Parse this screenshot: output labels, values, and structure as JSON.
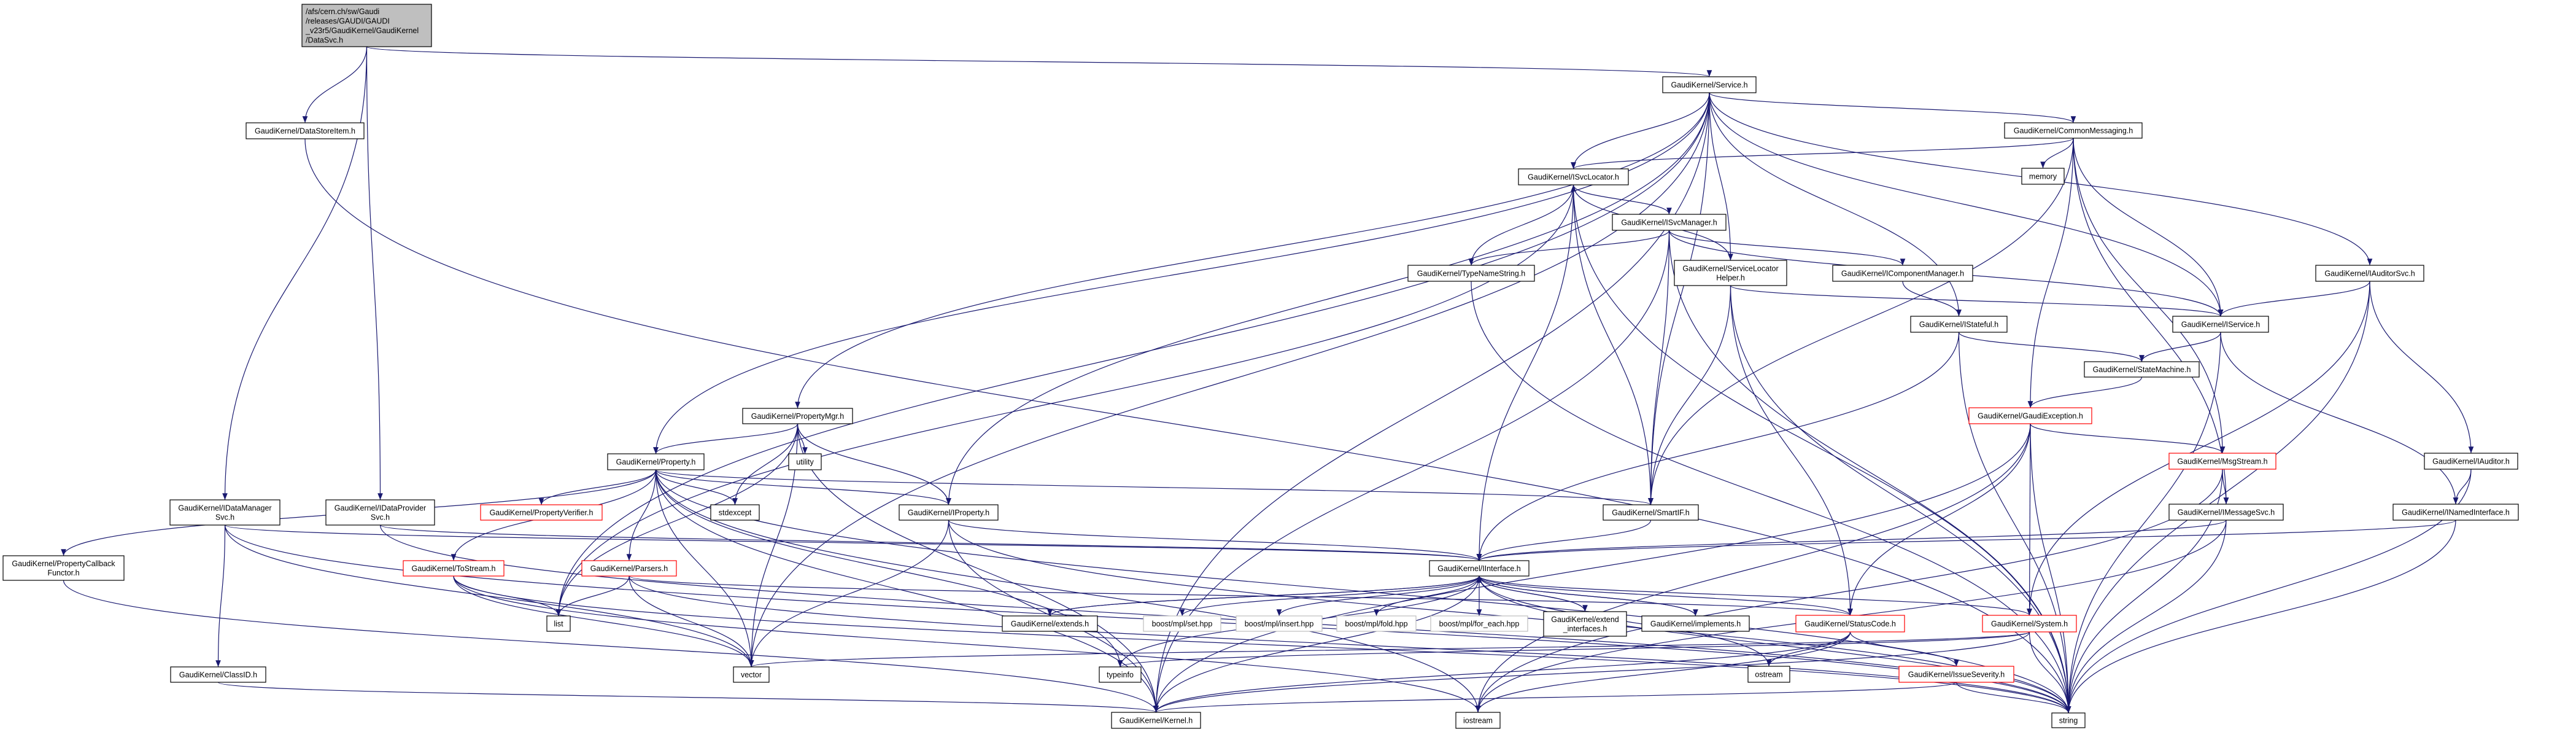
{
  "graph": {
    "colors": {
      "edge": "#191970",
      "root_fill": "#bfbfbf",
      "red_border": "#ff0000",
      "external_border": "#bfbfbf",
      "normal_border": "#000000"
    },
    "nodes": [
      {
        "id": "root",
        "lines": [
          "/afs/cern.ch/sw/Gaudi",
          "/releases/GAUDI/GAUDI",
          "_v23r5/GaudiKernel/GaudiKernel",
          "/DataSvc.h"
        ],
        "style": "root"
      },
      {
        "id": "dsi",
        "lines": [
          "GaudiKernel/DataStoreItem.h"
        ],
        "style": "normal"
      },
      {
        "id": "idms",
        "lines": [
          "GaudiKernel/IDataManager",
          "Svc.h"
        ],
        "style": "normal"
      },
      {
        "id": "idps",
        "lines": [
          "GaudiKernel/IDataProvider",
          "Svc.h"
        ],
        "style": "normal"
      },
      {
        "id": "pcf",
        "lines": [
          "GaudiKernel/PropertyCallback",
          "Functor.h"
        ],
        "style": "normal"
      },
      {
        "id": "cid",
        "lines": [
          "GaudiKernel/ClassID.h"
        ],
        "style": "normal"
      },
      {
        "id": "prop",
        "lines": [
          "GaudiKernel/Property.h"
        ],
        "style": "normal"
      },
      {
        "id": "pmgr",
        "lines": [
          "GaudiKernel/PropertyMgr.h"
        ],
        "style": "normal"
      },
      {
        "id": "util",
        "lines": [
          "utility"
        ],
        "style": "normal"
      },
      {
        "id": "pver",
        "lines": [
          "GaudiKernel/PropertyVerifier.h"
        ],
        "style": "red"
      },
      {
        "id": "stdx",
        "lines": [
          "stdexcept"
        ],
        "style": "normal"
      },
      {
        "id": "tos",
        "lines": [
          "GaudiKernel/ToStream.h"
        ],
        "style": "red"
      },
      {
        "id": "pars",
        "lines": [
          "GaudiKernel/Parsers.h"
        ],
        "style": "red"
      },
      {
        "id": "list",
        "lines": [
          "list"
        ],
        "style": "normal"
      },
      {
        "id": "vec",
        "lines": [
          "vector"
        ],
        "style": "normal"
      },
      {
        "id": "iprop",
        "lines": [
          "GaudiKernel/IProperty.h"
        ],
        "style": "normal"
      },
      {
        "id": "smart",
        "lines": [
          "GaudiKernel/SmartIF.h"
        ],
        "style": "normal"
      },
      {
        "id": "iint",
        "lines": [
          "GaudiKernel/IInterface.h"
        ],
        "style": "normal"
      },
      {
        "id": "ext",
        "lines": [
          "GaudiKernel/extends.h"
        ],
        "style": "normal"
      },
      {
        "id": "bset",
        "lines": [
          "boost/mpl/set.hpp"
        ],
        "style": "external"
      },
      {
        "id": "bins",
        "lines": [
          "boost/mpl/insert.hpp"
        ],
        "style": "external"
      },
      {
        "id": "bfold",
        "lines": [
          "boost/mpl/fold.hpp"
        ],
        "style": "external"
      },
      {
        "id": "bfor",
        "lines": [
          "boost/mpl/for_each.hpp"
        ],
        "style": "external"
      },
      {
        "id": "extif",
        "lines": [
          "GaudiKernel/extend",
          "_interfaces.h"
        ],
        "style": "normal"
      },
      {
        "id": "impl",
        "lines": [
          "GaudiKernel/implements.h"
        ],
        "style": "normal"
      },
      {
        "id": "tinfo",
        "lines": [
          "typeinfo"
        ],
        "style": "normal"
      },
      {
        "id": "kern",
        "lines": [
          "GaudiKernel/Kernel.h"
        ],
        "style": "normal"
      },
      {
        "id": "iostr",
        "lines": [
          "iostream"
        ],
        "style": "normal"
      },
      {
        "id": "isl",
        "lines": [
          "GaudiKernel/ISvcLocator.h"
        ],
        "style": "normal"
      },
      {
        "id": "ism",
        "lines": [
          "GaudiKernel/ISvcManager.h"
        ],
        "style": "normal"
      },
      {
        "id": "tns",
        "lines": [
          "GaudiKernel/TypeNameString.h"
        ],
        "style": "normal"
      },
      {
        "id": "slh",
        "lines": [
          "GaudiKernel/ServiceLocator",
          "Helper.h"
        ],
        "style": "normal"
      },
      {
        "id": "cmsg",
        "lines": [
          "GaudiKernel/CommonMessaging.h"
        ],
        "style": "normal"
      },
      {
        "id": "mem",
        "lines": [
          "memory"
        ],
        "style": "normal"
      },
      {
        "id": "icm",
        "lines": [
          "GaudiKernel/IComponentManager.h"
        ],
        "style": "normal"
      },
      {
        "id": "istf",
        "lines": [
          "GaudiKernel/IStateful.h"
        ],
        "style": "normal"
      },
      {
        "id": "isvc",
        "lines": [
          "GaudiKernel/IService.h"
        ],
        "style": "normal"
      },
      {
        "id": "iasvc",
        "lines": [
          "GaudiKernel/IAuditorSvc.h"
        ],
        "style": "normal"
      },
      {
        "id": "sm",
        "lines": [
          "GaudiKernel/StateMachine.h"
        ],
        "style": "normal"
      },
      {
        "id": "gexc",
        "lines": [
          "GaudiKernel/GaudiException.h"
        ],
        "style": "red"
      },
      {
        "id": "msg",
        "lines": [
          "GaudiKernel/MsgStream.h"
        ],
        "style": "red"
      },
      {
        "id": "iaud",
        "lines": [
          "GaudiKernel/IAuditor.h"
        ],
        "style": "normal"
      },
      {
        "id": "imsg",
        "lines": [
          "GaudiKernel/IMessageSvc.h"
        ],
        "style": "normal"
      },
      {
        "id": "inam",
        "lines": [
          "GaudiKernel/INamedInterface.h"
        ],
        "style": "normal"
      },
      {
        "id": "sc",
        "lines": [
          "GaudiKernel/StatusCode.h"
        ],
        "style": "red"
      },
      {
        "id": "sys",
        "lines": [
          "GaudiKernel/System.h"
        ],
        "style": "red"
      },
      {
        "id": "ostr",
        "lines": [
          "ostream"
        ],
        "style": "normal"
      },
      {
        "id": "isev",
        "lines": [
          "GaudiKernel/IssueSeverity.h"
        ],
        "style": "red"
      },
      {
        "id": "str",
        "lines": [
          "string"
        ],
        "style": "normal"
      },
      {
        "id": "svc",
        "lines": [
          "GaudiKernel/Service.h"
        ],
        "style": "normal"
      }
    ],
    "edges": [
      [
        "root",
        "svc"
      ],
      [
        "root",
        "dsi"
      ],
      [
        "root",
        "idms"
      ],
      [
        "root",
        "idps"
      ],
      [
        "dsi",
        "str"
      ],
      [
        "idms",
        "cid"
      ],
      [
        "idms",
        "iint"
      ],
      [
        "idms",
        "str"
      ],
      [
        "idms",
        "vec"
      ],
      [
        "idps",
        "iint"
      ],
      [
        "idps",
        "str"
      ],
      [
        "cid",
        "kern"
      ],
      [
        "pcf",
        "kern"
      ],
      [
        "svc",
        "isl"
      ],
      [
        "svc",
        "prop"
      ],
      [
        "svc",
        "pmgr"
      ],
      [
        "svc",
        "iprop"
      ],
      [
        "svc",
        "isvc"
      ],
      [
        "svc",
        "cmsg"
      ],
      [
        "svc",
        "iasvc"
      ],
      [
        "svc",
        "slh"
      ],
      [
        "svc",
        "istf"
      ],
      [
        "svc",
        "smart"
      ],
      [
        "svc",
        "kern"
      ],
      [
        "svc",
        "vec"
      ],
      [
        "svc",
        "list"
      ],
      [
        "isl",
        "ism"
      ],
      [
        "isl",
        "tns"
      ],
      [
        "isl",
        "iint"
      ],
      [
        "isl",
        "smart"
      ],
      [
        "isl",
        "str"
      ],
      [
        "isl",
        "list"
      ],
      [
        "ism",
        "tns"
      ],
      [
        "ism",
        "icm"
      ],
      [
        "ism",
        "isvc"
      ],
      [
        "ism",
        "smart"
      ],
      [
        "ism",
        "str"
      ],
      [
        "ism",
        "kern"
      ],
      [
        "tns",
        "str"
      ],
      [
        "slh",
        "isl"
      ],
      [
        "slh",
        "isvc"
      ],
      [
        "slh",
        "smart"
      ],
      [
        "slh",
        "sc"
      ],
      [
        "slh",
        "str"
      ],
      [
        "cmsg",
        "mem"
      ],
      [
        "cmsg",
        "isl"
      ],
      [
        "cmsg",
        "isvc"
      ],
      [
        "cmsg",
        "gexc"
      ],
      [
        "cmsg",
        "msg"
      ],
      [
        "cmsg",
        "imsg"
      ],
      [
        "cmsg",
        "smart"
      ],
      [
        "icm",
        "istf"
      ],
      [
        "istf",
        "sm"
      ],
      [
        "istf",
        "iint"
      ],
      [
        "istf",
        "str"
      ],
      [
        "isvc",
        "sm"
      ],
      [
        "isvc",
        "inam"
      ],
      [
        "isvc",
        "str"
      ],
      [
        "sm",
        "gexc"
      ],
      [
        "iasvc",
        "isvc"
      ],
      [
        "iasvc",
        "iaud"
      ],
      [
        "iasvc",
        "sys"
      ],
      [
        "iasvc",
        "str"
      ],
      [
        "iaud",
        "inam"
      ],
      [
        "iaud",
        "str"
      ],
      [
        "inam",
        "iint"
      ],
      [
        "inam",
        "str"
      ],
      [
        "gexc",
        "msg"
      ],
      [
        "gexc",
        "sc"
      ],
      [
        "gexc",
        "sys"
      ],
      [
        "gexc",
        "str"
      ],
      [
        "gexc",
        "kern"
      ],
      [
        "gexc",
        "iostr"
      ],
      [
        "msg",
        "imsg"
      ],
      [
        "msg",
        "str"
      ],
      [
        "msg",
        "iostr"
      ],
      [
        "imsg",
        "iint"
      ],
      [
        "imsg",
        "str"
      ],
      [
        "imsg",
        "iostr"
      ],
      [
        "sys",
        "str"
      ],
      [
        "sys",
        "kern"
      ],
      [
        "sys",
        "tinfo"
      ],
      [
        "sys",
        "vec"
      ],
      [
        "sc",
        "ostr"
      ],
      [
        "sc",
        "isev"
      ],
      [
        "sc",
        "kern"
      ],
      [
        "sc",
        "iostr"
      ],
      [
        "isev",
        "str"
      ],
      [
        "isev",
        "kern"
      ],
      [
        "iint",
        "ext"
      ],
      [
        "iint",
        "bset"
      ],
      [
        "iint",
        "bins"
      ],
      [
        "iint",
        "bfold"
      ],
      [
        "iint",
        "bfor"
      ],
      [
        "iint",
        "extif"
      ],
      [
        "iint",
        "impl"
      ],
      [
        "iint",
        "tinfo"
      ],
      [
        "iint",
        "sc"
      ],
      [
        "iint",
        "sys"
      ],
      [
        "iint",
        "kern"
      ],
      [
        "iint",
        "ostr"
      ],
      [
        "iint",
        "str"
      ],
      [
        "ext",
        "iint"
      ],
      [
        "extif",
        "iint"
      ],
      [
        "impl",
        "iint"
      ],
      [
        "smart",
        "iint"
      ],
      [
        "iprop",
        "iint"
      ],
      [
        "iprop",
        "str"
      ],
      [
        "iprop",
        "vec"
      ],
      [
        "iprop",
        "kern"
      ],
      [
        "prop",
        "pver"
      ],
      [
        "prop",
        "stdx"
      ],
      [
        "prop",
        "tos"
      ],
      [
        "prop",
        "pars"
      ],
      [
        "prop",
        "smart"
      ],
      [
        "prop",
        "iprop"
      ],
      [
        "prop",
        "pcf"
      ],
      [
        "prop",
        "str"
      ],
      [
        "prop",
        "vec"
      ],
      [
        "prop",
        "tinfo"
      ],
      [
        "prop",
        "kern"
      ],
      [
        "prop",
        "iostr"
      ],
      [
        "pmgr",
        "prop"
      ],
      [
        "pmgr",
        "util"
      ],
      [
        "pmgr",
        "stdx"
      ],
      [
        "pmgr",
        "iprop"
      ],
      [
        "pmgr",
        "vec"
      ],
      [
        "pmgr",
        "list"
      ],
      [
        "pmgr",
        "kern"
      ],
      [
        "tos",
        "list"
      ],
      [
        "tos",
        "vec"
      ],
      [
        "tos",
        "str"
      ],
      [
        "tos",
        "iostr"
      ],
      [
        "pars",
        "list"
      ],
      [
        "pars",
        "vec"
      ],
      [
        "pars",
        "str"
      ],
      [
        "pars",
        "sc"
      ]
    ]
  }
}
